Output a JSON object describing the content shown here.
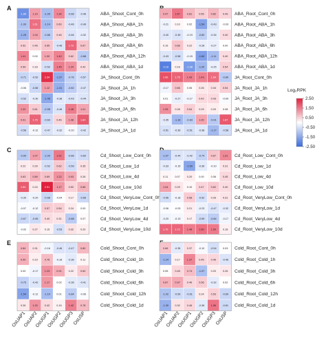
{
  "chart_data": [
    {
      "type": "heatmap",
      "panel": "A",
      "rows": [
        "ABA_Shoot_Cont_0h",
        "ABA_Shoot_ABA_1h",
        "ABA_Shoot_ABA_3h",
        "ABA_Shoot_ABA_6h",
        "ABA_Shoot_ABA_12h",
        "ABA_Shoot_ABA_1d",
        "JA_Shoot_Cont_0h",
        "JA_Shoot_JA_1h",
        "JA_Shoot_JA_3h",
        "JA_Shoot_JA_6h",
        "JA_Shoot_JA_12h",
        "JA_Shoot_JA_1d"
      ],
      "values": [
        [
          -1.85,
          1.1,
          -1.09,
          1.34,
          -0.66,
          -0.46
        ],
        [
          -1.0,
          1.61,
          -1.14,
          0.6,
          -0.46,
          -0.49
        ],
        [
          -1.26,
          1.04,
          -0.86,
          0.46,
          -0.46,
          -0.32
        ],
        [
          0.52,
          0.46,
          0.65,
          -0.46,
          1.73,
          0.67
        ],
        [
          1.41,
          0.0,
          1.0,
          1.4,
          0.62,
          -0.88
        ],
        [
          0.59,
          0.18,
          -0.52,
          1.45,
          1.24,
          0.42
        ],
        [
          -0.71,
          -0.52,
          2.34,
          -1.37,
          -0.76,
          -0.57
        ],
        [
          -0.06,
          -0.66,
          1.12,
          -1.31,
          -0.82,
          -0.47
        ],
        [
          -0.52,
          -0.3,
          -1.46,
          -0.38,
          -0.43,
          -0.44
        ],
        [
          1.22,
          0.61,
          -0.95,
          -0.46,
          1.48,
          1.01
        ],
        [
          0.91,
          1.75,
          -0.64,
          0.46,
          1.08,
          1.84
        ],
        [
          -0.56,
          -0.12,
          -0.47,
          -0.32,
          -0.1,
          -0.42
        ]
      ]
    },
    {
      "type": "heatmap",
      "panel": "B",
      "rows": [
        "ABA_Root_Cont_0h",
        "ABA_Root_ABA_1h",
        "ABA_Root_ABA_3h",
        "ABA_Root_ABA_6h",
        "ABA_Root_ABA_12h",
        "ABA_Root_ABA_1d",
        "JA_Root_Cont_0h",
        "JA_Root_JA_1h",
        "JA_Root_JA_3h",
        "JA_Root_JA_6h",
        "JA_Root_JA_12h",
        "JA_Root_JA_1d"
      ],
      "values": [
        [
          0.97,
          1.57,
          0.81,
          0.55,
          0.82,
          0.49
        ],
        [
          -0.21,
          0.1,
          0.02,
          -1.54,
          -0.43,
          -0.03
        ],
        [
          -0.4,
          -0.45,
          -0.19,
          -0.8,
          -0.34,
          0.4
        ],
        [
          0.15,
          0.66,
          0.22,
          -0.28,
          -0.27,
          0.0
        ],
        [
          -0.43,
          -0.58,
          -0.15,
          -1.6,
          -1.11,
          0.4
        ],
        [
          -2.16,
          0.16,
          -1.68,
          -1.2,
          -0.25,
          0.54
        ],
        [
          1.96,
          1.75,
          1.43,
          1.43,
          1.64,
          -0.89
        ],
        [
          -0.17,
          0.66,
          0.06,
          0.26,
          0.34,
          0.54
        ],
        [
          0.01,
          -0.27,
          -0.17,
          0.42,
          0.43,
          -0.09
        ],
        [
          1.25,
          0.28,
          0.54,
          0.29,
          0.2,
          0.08
        ],
        [
          -0.35,
          -1.16,
          -0.83,
          1.0,
          -0.91,
          1.87
        ],
        [
          -0.51,
          -0.39,
          -0.51,
          -0.38,
          -1.17,
          -0.58
        ]
      ]
    },
    {
      "type": "heatmap",
      "panel": "C",
      "rows": [
        "Cd_Shoot_Low_Cont_0h",
        "Cd_Shoot_Low_1d",
        "Cd_Shoot_Low_4d",
        "Cd_Shoot_Low_10d",
        "Cd_Shoot_VeryLow_Cont_0h",
        "Cd_Shoot_VeryLow_1d",
        "Cd_Shoot_VeryLow_4d",
        "Cd_Shoot_VeryLow_10d"
      ],
      "values": [
        [
          -0.9,
          1.07,
          -1.0,
          1.51,
          -0.66,
          -0.6
        ],
        [
          0.22,
          0.29,
          -0.52,
          0.62,
          -0.59,
          0.35
        ],
        [
          0.63,
          0.89,
          0.69,
          1.22,
          0.93,
          0.26
        ],
        [
          1.84,
          0.24,
          2.51,
          1.17,
          0.52,
          0.85
        ],
        [
          -0.3,
          -0.2,
          -0.68,
          -0.04,
          0.17,
          -0.66
        ],
        [
          -0.07,
          -0.12,
          0.57,
          0.54,
          0.24,
          0.0
        ],
        [
          -0.67,
          -0.65,
          0.4,
          0.31,
          -0.88,
          0.07
        ],
        [
          -0.02,
          0.27,
          0.15,
          -0.53,
          0.32,
          0.2
        ]
      ]
    },
    {
      "type": "heatmap",
      "panel": "D",
      "rows": [
        "Cd_Root_Low_Cont_0h",
        "Cd_Root_Low_1d",
        "Cd_Root_Low_4d",
        "Cd_Root_Low_10d",
        "Cd_Root_VeryLow_Cont_0h",
        "Cd_Root_VeryLow_1d",
        "Cd_Root_VeryLow_4d",
        "Cd_Root_VeryLow_10d"
      ],
      "values": [
        [
          -1.07,
          -0.44,
          -0.42,
          -0.74,
          0.67,
          1.31
        ],
        [
          -0.33,
          -0.15,
          -1.5,
          -0.36,
          -0.1,
          0.31
        ],
        [
          0.11,
          0.07,
          0.2,
          0.0,
          0.06,
          0.45
        ],
        [
          1.04,
          0.29,
          0.1,
          0.47,
          0.62,
          0.4
        ],
        [
          -0.56,
          -0.18,
          0.58,
          -0.52,
          0.26,
          0.31
        ],
        [
          -0.06,
          -0.03,
          0.21,
          -0.23,
          -0.47,
          -0.32
        ],
        [
          -0.2,
          -0.13,
          0.17,
          -0.59,
          -0.84,
          -0.17
        ],
        [
          1.7,
          1.72,
          1.48,
          1.6,
          1.5,
          0.18
        ]
      ]
    },
    {
      "type": "heatmap",
      "panel": "E",
      "rows": [
        "Cold_Shoot_Cont_0h",
        "Cold_Shoot_Cold_1h",
        "Cold_Shoot_Cold_3h",
        "Cold_Shoot_Cold_6h",
        "Cold_Shoot_Cold_12h",
        "Cold_Shoot_Cold_1d"
      ],
      "values": [
        [
          0.84,
          0.31,
          -0.16,
          -0.46,
          -0.47,
          0.8
        ],
        [
          0.9,
          0.19,
          0.76,
          -0.18,
          -0.36,
          0.11
        ],
        [
          0.0,
          -0.17,
          1.23,
          0.91,
          0.22,
          0.6
        ],
        [
          -0.75,
          -0.42,
          1.17,
          0.02,
          -0.36,
          -0.41
        ],
        [
          -1.54,
          -0.12,
          -1.1,
          0.01,
          -0.84,
          -0.06
        ],
        [
          0.26,
          1.2,
          0.42,
          0.15,
          1.42,
          0.78
        ]
      ]
    },
    {
      "type": "heatmap",
      "panel": "F",
      "rows": [
        "Cold_Root_Cont_0h",
        "Cold_Root_Cold_1h",
        "Cold_Root_Cold_3h",
        "Cold_Root_Cold_6h",
        "Cold_Root_Cold_12h",
        "Cold_Root_Cold_1d"
      ],
      "values": [
        [
          0.66,
          -0.35,
          0.37,
          -0.1,
          -0.54,
          0.03
        ],
        [
          -1.24,
          0.17,
          1.37,
          0.45,
          0.46,
          -0.46
        ],
        [
          0.05,
          0.45,
          0.74,
          -1.07,
          0.2,
          0.26
        ],
        [
          0.87,
          0.97,
          0.46,
          0.56,
          -0.32,
          0.02
        ],
        [
          -1.02,
          -0.59,
          -0.61,
          0.24,
          0.53,
          -0.69
        ],
        [
          -1.3,
          0.32,
          0.46,
          -0.36,
          1.56,
          -0.61
        ]
      ]
    }
  ],
  "columns": [
    "OsUAP1",
    "OsUAP2",
    "OsUGP1",
    "OsUGP2",
    "OsUGP3",
    "OsUSP"
  ],
  "legend": {
    "title": "Log₂RPK",
    "ticks": [
      "2.50",
      "1.50",
      "0.50",
      "-0.50",
      "-1.50",
      "-2.50"
    ],
    "range": [
      -2.5,
      2.5
    ]
  },
  "colors": {
    "low": "#3b6bdc",
    "mid": "#ffffff",
    "high": "#e0213d",
    "border": "#555555"
  }
}
